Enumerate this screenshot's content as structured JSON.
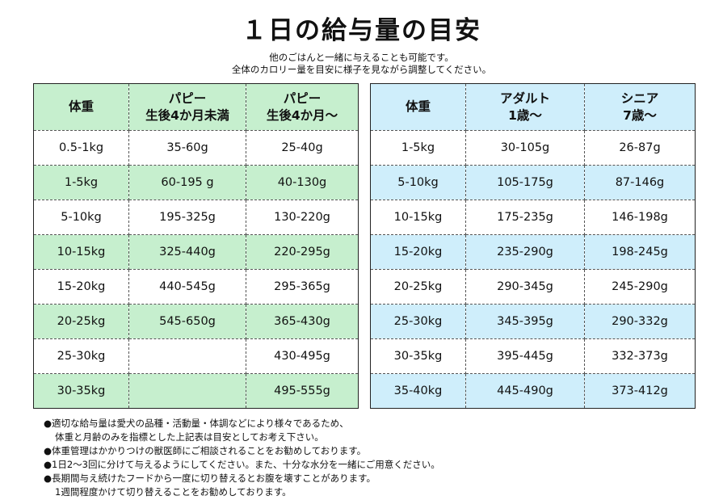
{
  "title": "１日の給与量の目安",
  "subtitle": {
    "line1": "他のごはんと一緒に与えることも可能です。",
    "line2": "全体のカロリー量を目安に様子を見ながら調整してください。"
  },
  "puppy_table": {
    "headers": [
      {
        "line1": "体重",
        "line2": ""
      },
      {
        "line1": "パピー",
        "line2": "生後4か月未満"
      },
      {
        "line1": "パピー",
        "line2": "生後4か月～"
      }
    ],
    "rows": [
      [
        "0.5-1kg",
        "35-60g",
        "25-40g"
      ],
      [
        "1-5kg",
        "60-195 g",
        "40-130g"
      ],
      [
        "5-10kg",
        "195-325g",
        "130-220g"
      ],
      [
        "10-15kg",
        "325-440g",
        "220-295g"
      ],
      [
        "15-20kg",
        "440-545g",
        "295-365g"
      ],
      [
        "20-25kg",
        "545-650g",
        "365-430g"
      ],
      [
        "25-30kg",
        "",
        "430-495g"
      ],
      [
        "30-35kg",
        "",
        "495-555g"
      ]
    ]
  },
  "adult_table": {
    "headers": [
      {
        "line1": "体重",
        "line2": ""
      },
      {
        "line1": "アダルト",
        "line2": "1歳～"
      },
      {
        "line1": "シニア",
        "line2": "7歳～"
      }
    ],
    "rows": [
      [
        "1-5kg",
        "30-105g",
        "26-87g"
      ],
      [
        "5-10kg",
        "105-175g",
        "87-146g"
      ],
      [
        "10-15kg",
        "175-235g",
        "146-198g"
      ],
      [
        "15-20kg",
        "235-290g",
        "198-245g"
      ],
      [
        "20-25kg",
        "290-345g",
        "245-290g"
      ],
      [
        "25-30kg",
        "345-395g",
        "290-332g"
      ],
      [
        "30-35kg",
        "395-445g",
        "332-373g"
      ],
      [
        "35-40kg",
        "445-490g",
        "373-412g"
      ]
    ]
  },
  "colors": {
    "puppy_shade": "#c6efce",
    "adult_shade": "#cfeefb"
  },
  "notes": [
    {
      "text": "●適切な給与量は愛犬の品種・活動量・体調などにより様々であるため、",
      "cont": "体重と月齢のみを指標とした上記表は目安としてお考え下さい。"
    },
    {
      "text": "●体重管理はかかりつけの獣医師にご相談されることをお勧めしております。",
      "cont": ""
    },
    {
      "text": "●1日2～3回に分けて与えるようにしてください。また、十分な水分を一緒にご用意ください。",
      "cont": ""
    },
    {
      "text": "●長期間与え続けたフードから一度に切り替えるとお腹を壊すことがあります。",
      "cont": "1週間程度かけて切り替えることをお勧めしております。"
    }
  ]
}
